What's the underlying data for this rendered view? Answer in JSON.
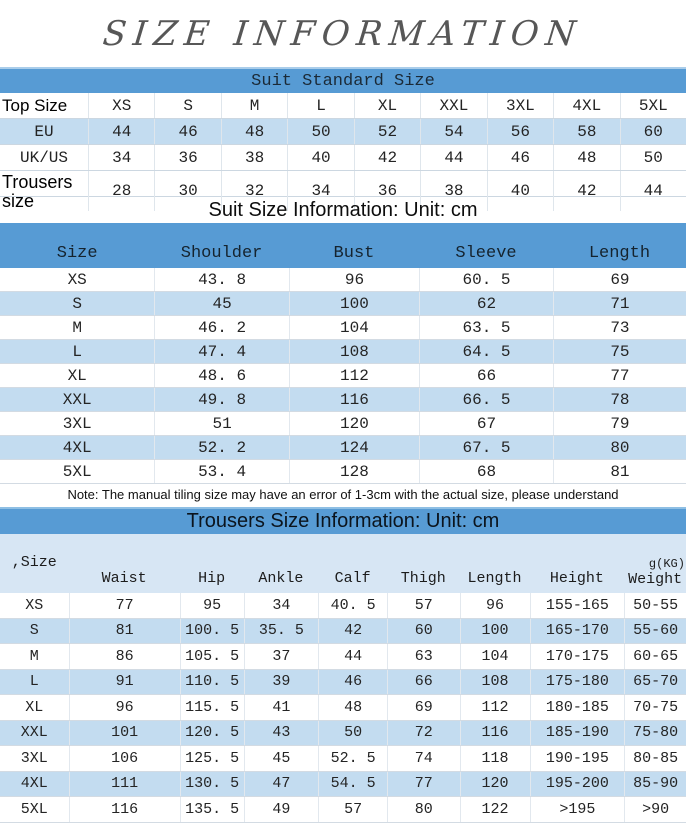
{
  "page": {
    "title": "SIZE INFORMATION"
  },
  "colors": {
    "header_blue": "#579bd4",
    "zebra_blue": "#c3dcf0",
    "subheader_blue": "#d7e6f4",
    "title_gray": "#575757"
  },
  "suit_standard": {
    "header": "Suit Standard Size",
    "rows": [
      {
        "label": "Top Size",
        "values": [
          "XS",
          "S",
          "M",
          "L",
          "XL",
          "XXL",
          "3XL",
          "4XL",
          "5XL"
        ]
      },
      {
        "label": "EU",
        "values": [
          "44",
          "46",
          "48",
          "50",
          "52",
          "54",
          "56",
          "58",
          "60"
        ]
      },
      {
        "label": "UK/US",
        "values": [
          "34",
          "36",
          "38",
          "40",
          "42",
          "44",
          "46",
          "48",
          "50"
        ]
      },
      {
        "label": "Trousers size",
        "values": [
          "28",
          "30",
          "32",
          "34",
          "36",
          "38",
          "40",
          "42",
          "44"
        ]
      }
    ]
  },
  "suit_size": {
    "heading": "Suit Size Information: Unit: cm",
    "columns": [
      "Size",
      "Shoulder",
      "Bust",
      "Sleeve",
      "Length"
    ],
    "rows": [
      [
        "XS",
        "43. 8",
        "96",
        "60. 5",
        "69"
      ],
      [
        "S",
        "45",
        "100",
        "62",
        "71"
      ],
      [
        "M",
        "46. 2",
        "104",
        "63. 5",
        "73"
      ],
      [
        "L",
        "47. 4",
        "108",
        "64. 5",
        "75"
      ],
      [
        "XL",
        "48. 6",
        "112",
        "66",
        "77"
      ],
      [
        "XXL",
        "49. 8",
        "116",
        "66. 5",
        "78"
      ],
      [
        "3XL",
        "51",
        "120",
        "67",
        "79"
      ],
      [
        "4XL",
        "52. 2",
        "124",
        "67. 5",
        "80"
      ],
      [
        "5XL",
        "53. 4",
        "128",
        "68",
        "81"
      ]
    ],
    "note": "Note: The manual tiling size may have an error of 1-3cm with the actual size, please understand"
  },
  "trousers": {
    "heading": "Trousers Size Information: Unit: cm",
    "columns": [
      ",Size",
      "Waist",
      "Hip",
      "Ankle",
      "Calf",
      "Thigh",
      "Length",
      "Height",
      "Weight"
    ],
    "weight_unit": "g(KG)",
    "rows": [
      [
        "XS",
        "77",
        "95",
        "34",
        "40. 5",
        "57",
        "96",
        "155-165",
        "50-55"
      ],
      [
        "S",
        "81",
        "100. 5",
        "35. 5",
        "42",
        "60",
        "100",
        "165-170",
        "55-60"
      ],
      [
        "M",
        "86",
        "105. 5",
        "37",
        "44",
        "63",
        "104",
        "170-175",
        "60-65"
      ],
      [
        "L",
        "91",
        "110. 5",
        "39",
        "46",
        "66",
        "108",
        "175-180",
        "65-70"
      ],
      [
        "XL",
        "96",
        "115. 5",
        "41",
        "48",
        "69",
        "112",
        "180-185",
        "70-75"
      ],
      [
        "XXL",
        "101",
        "120. 5",
        "43",
        "50",
        "72",
        "116",
        "185-190",
        "75-80"
      ],
      [
        "3XL",
        "106",
        "125. 5",
        "45",
        "52. 5",
        "74",
        "118",
        "190-195",
        "80-85"
      ],
      [
        "4XL",
        "111",
        "130. 5",
        "47",
        "54. 5",
        "77",
        "120",
        "195-200",
        "85-90"
      ],
      [
        "5XL",
        "116",
        "135. 5",
        "49",
        "57",
        "80",
        "122",
        ">195",
        ">90"
      ]
    ]
  }
}
